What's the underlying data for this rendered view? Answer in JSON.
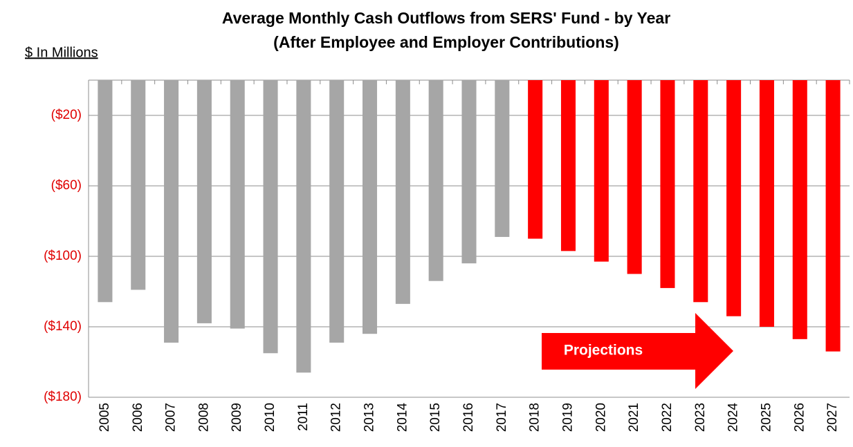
{
  "chart_data": {
    "type": "bar",
    "title": "Average Monthly Cash Outflows from SERS' Fund - by Year",
    "subtitle": "(After Employee and Employer Contributions)",
    "y_axis_label": "$ In Millions",
    "annotation": "Projections",
    "categories": [
      "2005",
      "2006",
      "2007",
      "2008",
      "2009",
      "2010",
      "2011",
      "2012",
      "2013",
      "2014",
      "2015",
      "2016",
      "2017",
      "2018",
      "2019",
      "2020",
      "2021",
      "2022",
      "2023",
      "2024",
      "2025",
      "2026",
      "2027"
    ],
    "values": [
      -126,
      -119,
      -149,
      -138,
      -141,
      -155,
      -166,
      -149,
      -144,
      -127,
      -114,
      -104,
      -89,
      -90,
      -97,
      -103,
      -110,
      -118,
      -126,
      -134,
      -140,
      -147,
      -154
    ],
    "colors": [
      "#a6a6a6",
      "#a6a6a6",
      "#a6a6a6",
      "#a6a6a6",
      "#a6a6a6",
      "#a6a6a6",
      "#a6a6a6",
      "#a6a6a6",
      "#a6a6a6",
      "#a6a6a6",
      "#a6a6a6",
      "#a6a6a6",
      "#a6a6a6",
      "#ff0000",
      "#ff0000",
      "#ff0000",
      "#ff0000",
      "#ff0000",
      "#ff0000",
      "#ff0000",
      "#ff0000",
      "#ff0000",
      "#ff0000"
    ],
    "ylim": [
      -180,
      0
    ],
    "yticks": [
      {
        "value": -20,
        "label": "($20)"
      },
      {
        "value": -60,
        "label": "($60)"
      },
      {
        "value": -100,
        "label": "($100)"
      },
      {
        "value": -140,
        "label": "($140)"
      },
      {
        "value": -180,
        "label": "($180)"
      }
    ],
    "grid": true
  }
}
